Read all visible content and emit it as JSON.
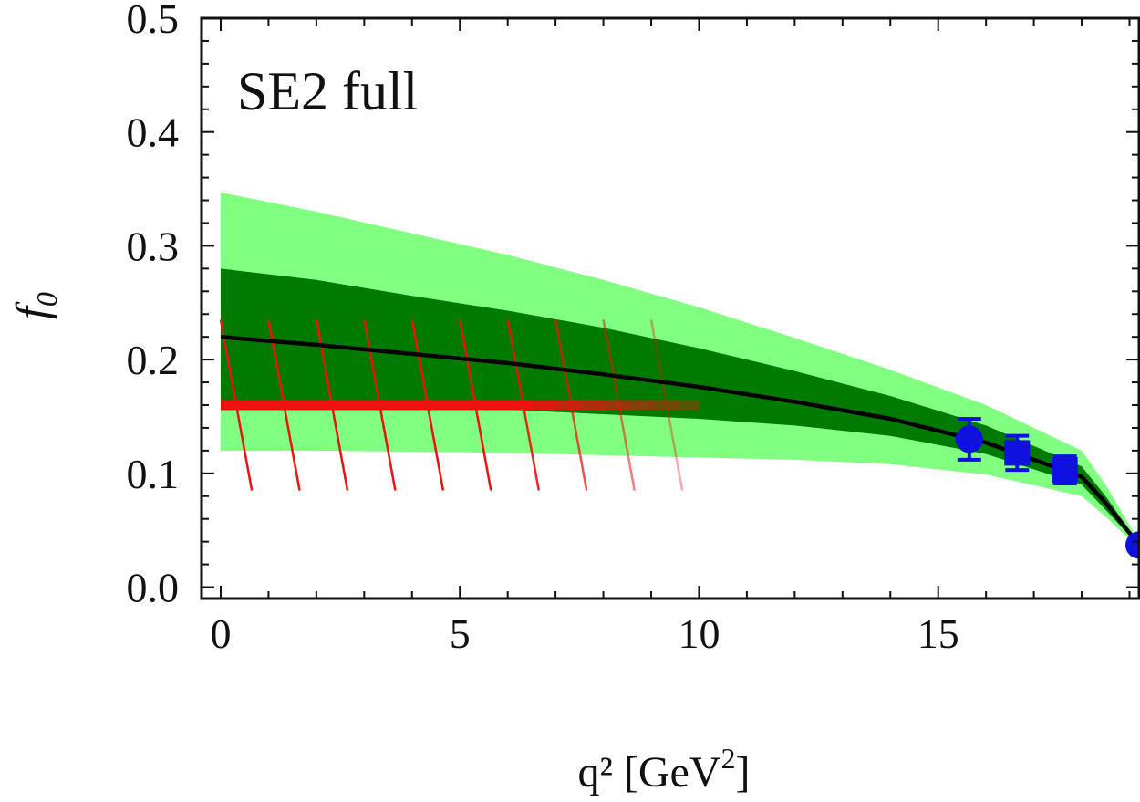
{
  "chart_data": {
    "type": "line",
    "title": "SE2 full",
    "xlabel": "q² [GeV²]",
    "xlabel_parts": {
      "base": "q²  [GeV",
      "sup": "2",
      "close": "]"
    },
    "ylabel": "f0",
    "ylabel_parts": {
      "base": "f",
      "sub": "0"
    },
    "xlim": [
      -0.4,
      19.2
    ],
    "ylim": [
      -0.01,
      0.5
    ],
    "x_ticks": [
      {
        "value": 0,
        "label": "0"
      },
      {
        "value": 5,
        "label": "5"
      },
      {
        "value": 10,
        "label": "10"
      },
      {
        "value": 15,
        "label": "15"
      }
    ],
    "y_ticks": [
      {
        "value": 0.0,
        "label": "0.0"
      },
      {
        "value": 0.1,
        "label": "0.1"
      },
      {
        "value": 0.2,
        "label": "0.2"
      },
      {
        "value": 0.3,
        "label": "0.3"
      },
      {
        "value": 0.4,
        "label": "0.4"
      },
      {
        "value": 0.5,
        "label": "0.5"
      }
    ],
    "colors": {
      "outer_band": "#80ff80",
      "inner_band": "#007a00",
      "central": "#000000",
      "lcsr": "#ee1111",
      "lattice": "#1010e0"
    },
    "series": [
      {
        "name": "central",
        "x": [
          0,
          2,
          4,
          6,
          8,
          10,
          12,
          14,
          16,
          18,
          18.5,
          19.2
        ],
        "values": [
          0.22,
          0.213,
          0.205,
          0.197,
          0.187,
          0.176,
          0.163,
          0.148,
          0.127,
          0.097,
          0.074,
          0.037
        ]
      },
      {
        "name": "inner-band",
        "x": [
          0,
          2,
          4,
          6,
          8,
          10,
          12,
          14,
          16,
          18,
          18.5,
          19.2
        ],
        "lower": [
          0.16,
          0.16,
          0.158,
          0.156,
          0.152,
          0.148,
          0.142,
          0.133,
          0.117,
          0.09,
          0.068,
          0.036
        ],
        "upper": [
          0.28,
          0.27,
          0.256,
          0.243,
          0.228,
          0.21,
          0.19,
          0.168,
          0.142,
          0.106,
          0.08,
          0.038
        ]
      },
      {
        "name": "outer-band",
        "x": [
          0,
          2,
          4,
          6,
          8,
          10,
          12,
          14,
          16,
          18,
          18.5,
          19.2
        ],
        "lower": [
          0.12,
          0.12,
          0.119,
          0.118,
          0.116,
          0.114,
          0.112,
          0.108,
          0.099,
          0.08,
          0.062,
          0.034
        ],
        "upper": [
          0.347,
          0.33,
          0.311,
          0.292,
          0.27,
          0.246,
          0.219,
          0.191,
          0.16,
          0.12,
          0.09,
          0.04
        ]
      },
      {
        "name": "lcsr",
        "x": [
          0,
          10
        ],
        "values": [
          0.16,
          0.16
        ],
        "hatch_x": [
          0,
          1,
          2,
          3,
          4,
          5,
          6,
          7,
          8,
          9
        ],
        "hatch_upper": 0.235,
        "hatch_lower": 0.085
      },
      {
        "name": "lattice",
        "points": [
          {
            "x": 15.65,
            "y": 0.13,
            "err": 0.018,
            "marker": "circle"
          },
          {
            "x": 16.65,
            "y": 0.118,
            "err": 0.015,
            "marker": "square"
          },
          {
            "x": 17.65,
            "y": 0.103,
            "err": 0.012,
            "marker": "square"
          },
          {
            "x": 19.2,
            "y": 0.037,
            "err": 0.0,
            "marker": "circle"
          }
        ]
      }
    ]
  }
}
